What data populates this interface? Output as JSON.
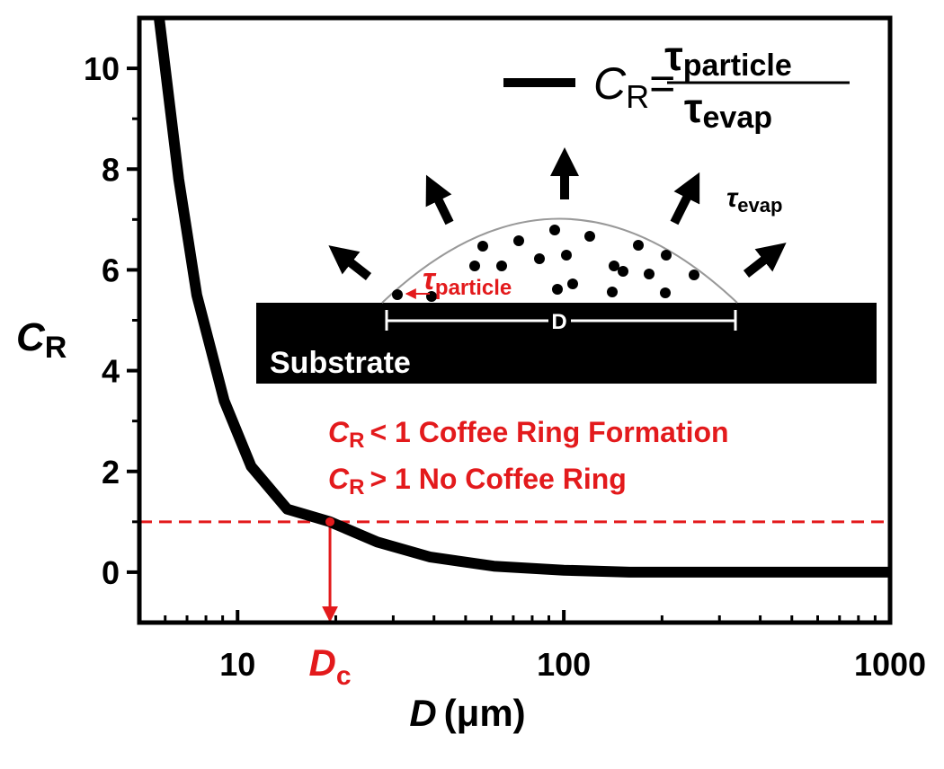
{
  "chart_data": {
    "type": "line",
    "x": [
      5.75,
      6.6,
      7.5,
      9.1,
      11,
      14.2,
      19.2,
      26.8,
      39,
      61,
      100,
      159,
      1000
    ],
    "values": [
      11,
      7.8,
      5.5,
      3.4,
      2.1,
      1.25,
      1.0,
      0.6,
      0.3,
      0.12,
      0.04,
      0,
      0
    ],
    "color": "#000000",
    "xscale": "log",
    "xlim": [
      5,
      1000
    ],
    "ylim": [
      -1,
      11
    ],
    "xticks": [
      10,
      100,
      1000
    ],
    "xminor": [
      5,
      6,
      7,
      8,
      9,
      20,
      30,
      40,
      50,
      60,
      70,
      80,
      90,
      200,
      300,
      400,
      500,
      600,
      700,
      800,
      900
    ],
    "yticks": [
      0,
      2,
      4,
      6,
      8,
      10
    ],
    "yminor": [
      1,
      3,
      5,
      7,
      9
    ],
    "xlabel": {
      "symbol": "D",
      "unit": "(μm)"
    },
    "ylabel": {
      "symbol": "C",
      "sub": "R"
    },
    "legend": {
      "symbol": "C",
      "sub": "R",
      "eq": "=",
      "numerator": {
        "symbol": "τ",
        "sub": "particle"
      },
      "denominator": {
        "symbol": "τ",
        "sub": "evap"
      }
    },
    "threshold": {
      "value": 1,
      "x": 19.2,
      "color": "#e31a1c",
      "label": {
        "symbol": "D",
        "sub": "c"
      }
    },
    "notes": [
      {
        "symbol": "C",
        "sub": "R",
        "text": "< 1 Coffee Ring Formation"
      },
      {
        "symbol": "C",
        "sub": "R",
        "text": "> 1 No Coffee Ring"
      }
    ],
    "inset": {
      "substrate": "Substrate",
      "diameter": "D",
      "evap": {
        "symbol": "τ",
        "sub": "evap"
      },
      "particle": {
        "symbol": "τ",
        "sub": "particle"
      }
    }
  }
}
